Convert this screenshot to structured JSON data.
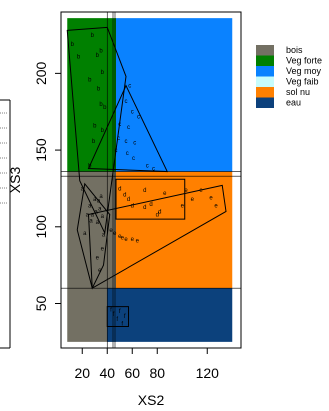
{
  "chart_data": {
    "type": "scatter",
    "title": "",
    "xlabel": "XS2",
    "ylabel": "XS3",
    "xlim": [
      3,
      147
    ],
    "ylim": [
      21,
      240
    ],
    "xticks": [
      "20",
      "40",
      "60",
      "80",
      "120"
    ],
    "xtick_values": [
      20,
      40,
      60,
      80,
      120
    ],
    "yticks": [
      "50",
      "100",
      "150",
      "200"
    ],
    "ytick_values": [
      50,
      100,
      150,
      200
    ],
    "grid": false,
    "legend_position": "right",
    "zones": [
      {
        "name": "bois",
        "color": "#737063",
        "x": [
          8,
          47
        ],
        "y": [
          25,
          136
        ]
      },
      {
        "name": "Veg forte",
        "color": "#008000",
        "x": [
          8,
          47
        ],
        "y": [
          136,
          236
        ]
      },
      {
        "name": "Veg moy",
        "color": "#0a82ff",
        "x": [
          47,
          140
        ],
        "y": [
          136,
          236
        ]
      },
      {
        "name": "Veg faib",
        "color": "#c7fcfc",
        "x": [
          47,
          100
        ],
        "y": [
          105,
          133
        ]
      },
      {
        "name": "sol nu",
        "color": "#ff8000",
        "x": [
          47,
          140
        ],
        "y": [
          60,
          136
        ]
      },
      {
        "name": "eau",
        "color": "#0c417c",
        "x": [
          40,
          140
        ],
        "y": [
          25,
          60
        ]
      }
    ],
    "legend": [
      {
        "label": "bois",
        "color": "#737063"
      },
      {
        "label": "Veg forte",
        "color": "#008000"
      },
      {
        "label": "Veg moy",
        "color": "#0a82ff"
      },
      {
        "label": "Veg faib",
        "color": "#c7fcfc"
      },
      {
        "label": "sol nu",
        "color": "#ff8000"
      },
      {
        "label": "eau",
        "color": "#0c417c"
      }
    ],
    "polygons": [
      {
        "class": "b",
        "points": [
          [
            8,
            228
          ],
          [
            40,
            230
          ],
          [
            55,
            198
          ],
          [
            38,
            96
          ],
          [
            18,
            130
          ]
        ]
      },
      {
        "class": "c",
        "points": [
          [
            55,
            192
          ],
          [
            88,
            136
          ],
          [
            25,
            138
          ]
        ]
      },
      {
        "class": "a",
        "points": [
          [
            22,
            128
          ],
          [
            42,
            108
          ],
          [
            37,
            75
          ],
          [
            28,
            60
          ],
          [
            16,
            98
          ]
        ]
      },
      {
        "class": "d",
        "points": [
          [
            47,
            131
          ],
          [
            102,
            131
          ],
          [
            102,
            105
          ],
          [
            47,
            105
          ]
        ]
      },
      {
        "class": "e",
        "points": [
          [
            25,
            108
          ],
          [
            132,
            127
          ],
          [
            135,
            110
          ],
          [
            28,
            60
          ]
        ]
      },
      {
        "class": "f",
        "points": [
          [
            40,
            48
          ],
          [
            57,
            48
          ],
          [
            57,
            35
          ],
          [
            40,
            35
          ]
        ]
      }
    ],
    "points": [
      {
        "x": 12,
        "y": 219,
        "label": "b"
      },
      {
        "x": 17,
        "y": 211,
        "label": "b"
      },
      {
        "x": 28,
        "y": 225,
        "label": "b"
      },
      {
        "x": 32,
        "y": 212,
        "label": "b"
      },
      {
        "x": 35,
        "y": 215,
        "label": "b"
      },
      {
        "x": 36,
        "y": 201,
        "label": "b"
      },
      {
        "x": 26,
        "y": 196,
        "label": "b"
      },
      {
        "x": 33,
        "y": 190,
        "label": "b"
      },
      {
        "x": 35,
        "y": 180,
        "label": "b"
      },
      {
        "x": 38,
        "y": 178,
        "label": "b"
      },
      {
        "x": 30,
        "y": 166,
        "label": "b"
      },
      {
        "x": 36,
        "y": 163,
        "label": "b"
      },
      {
        "x": 26,
        "y": 140,
        "label": "b"
      },
      {
        "x": 29,
        "y": 156,
        "label": "b"
      },
      {
        "x": 58,
        "y": 192,
        "label": "c"
      },
      {
        "x": 55,
        "y": 182,
        "label": "c"
      },
      {
        "x": 60,
        "y": 175,
        "label": "c"
      },
      {
        "x": 65,
        "y": 172,
        "label": "c"
      },
      {
        "x": 50,
        "y": 167,
        "label": "c"
      },
      {
        "x": 57,
        "y": 165,
        "label": "c"
      },
      {
        "x": 49,
        "y": 158,
        "label": "c"
      },
      {
        "x": 55,
        "y": 156,
        "label": "c"
      },
      {
        "x": 62,
        "y": 155,
        "label": "c"
      },
      {
        "x": 47,
        "y": 150,
        "label": "c"
      },
      {
        "x": 56,
        "y": 148,
        "label": "c"
      },
      {
        "x": 61,
        "y": 145,
        "label": "c"
      },
      {
        "x": 72,
        "y": 140,
        "label": "c"
      },
      {
        "x": 77,
        "y": 138,
        "label": "c"
      },
      {
        "x": 20,
        "y": 125,
        "label": "a"
      },
      {
        "x": 26,
        "y": 114,
        "label": "a"
      },
      {
        "x": 30,
        "y": 118,
        "label": "a"
      },
      {
        "x": 33,
        "y": 117,
        "label": "a"
      },
      {
        "x": 35,
        "y": 120,
        "label": "a"
      },
      {
        "x": 24,
        "y": 108,
        "label": "a"
      },
      {
        "x": 28,
        "y": 108,
        "label": "a"
      },
      {
        "x": 31,
        "y": 110,
        "label": "a"
      },
      {
        "x": 34,
        "y": 112,
        "label": "a"
      },
      {
        "x": 27,
        "y": 104,
        "label": "a"
      },
      {
        "x": 32,
        "y": 103,
        "label": "a"
      },
      {
        "x": 36,
        "y": 107,
        "label": "a"
      },
      {
        "x": 22,
        "y": 96,
        "label": "a"
      },
      {
        "x": 37,
        "y": 95,
        "label": "a"
      },
      {
        "x": 50,
        "y": 125,
        "label": "d"
      },
      {
        "x": 54,
        "y": 121,
        "label": "d"
      },
      {
        "x": 57,
        "y": 118,
        "label": "d"
      },
      {
        "x": 60,
        "y": 114,
        "label": "d"
      },
      {
        "x": 70,
        "y": 124,
        "label": "d"
      },
      {
        "x": 75,
        "y": 115,
        "label": "d"
      },
      {
        "x": 70,
        "y": 113,
        "label": "d"
      },
      {
        "x": 80,
        "y": 108,
        "label": "d"
      },
      {
        "x": 82,
        "y": 110,
        "label": "d"
      },
      {
        "x": 43,
        "y": 98,
        "label": "e"
      },
      {
        "x": 46,
        "y": 96,
        "label": "e"
      },
      {
        "x": 50,
        "y": 94,
        "label": "e"
      },
      {
        "x": 52,
        "y": 93,
        "label": "e"
      },
      {
        "x": 55,
        "y": 92,
        "label": "e"
      },
      {
        "x": 60,
        "y": 92,
        "label": "e"
      },
      {
        "x": 64,
        "y": 91,
        "label": "e"
      },
      {
        "x": 36,
        "y": 86,
        "label": "e"
      },
      {
        "x": 32,
        "y": 80,
        "label": "e"
      },
      {
        "x": 34,
        "y": 72,
        "label": "e"
      },
      {
        "x": 86,
        "y": 122,
        "label": "e"
      },
      {
        "x": 100,
        "y": 114,
        "label": "e"
      },
      {
        "x": 103,
        "y": 124,
        "label": "e"
      },
      {
        "x": 108,
        "y": 118,
        "label": "e"
      },
      {
        "x": 115,
        "y": 124,
        "label": "e"
      },
      {
        "x": 123,
        "y": 119,
        "label": "e"
      },
      {
        "x": 127,
        "y": 114,
        "label": "e"
      },
      {
        "x": 43,
        "y": 46,
        "label": "f"
      },
      {
        "x": 45,
        "y": 43,
        "label": "f"
      },
      {
        "x": 50,
        "y": 45,
        "label": "f"
      },
      {
        "x": 54,
        "y": 42,
        "label": "f"
      },
      {
        "x": 48,
        "y": 40,
        "label": "f"
      },
      {
        "x": 52,
        "y": 37,
        "label": "f"
      }
    ]
  }
}
